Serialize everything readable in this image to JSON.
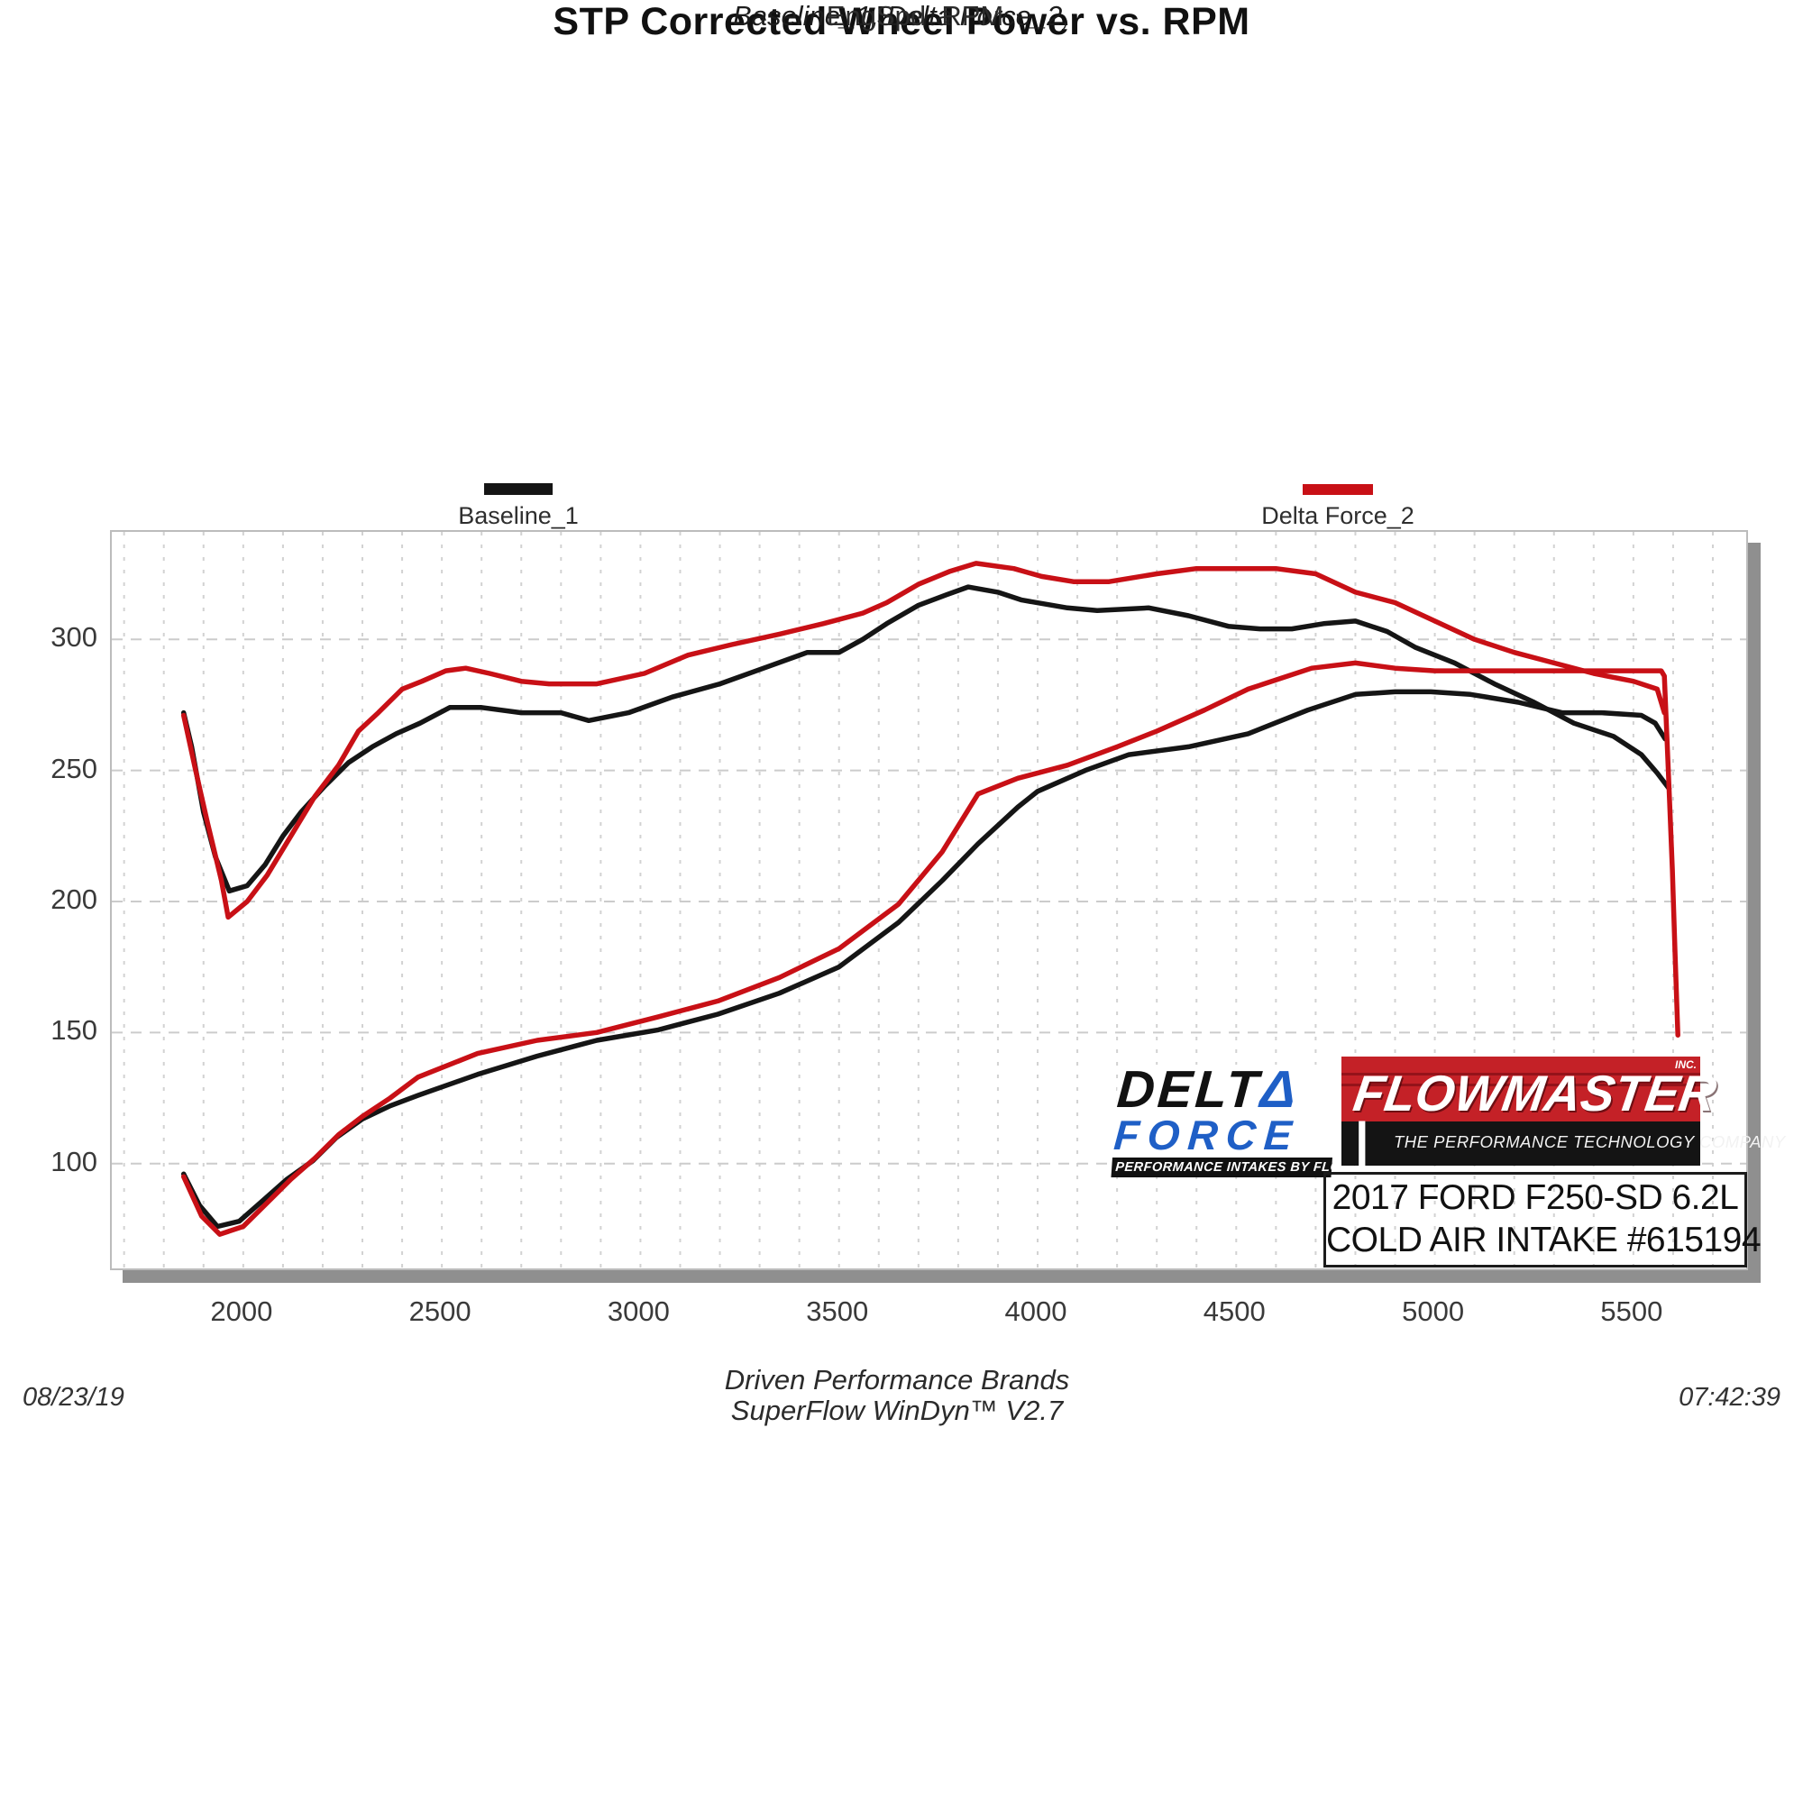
{
  "header": {
    "title": "STP Corrected Wheel Power vs. RPM",
    "subtitle": "Baseline_1, Delta Force_2,"
  },
  "footer": {
    "xlabel": "EngSpd  RPM",
    "brand_line": "Driven Performance Brands",
    "software_line": "SuperFlow WinDyn™ V2.7",
    "date": "08/23/19",
    "time": "07:42:39"
  },
  "logos": {
    "delta_force": {
      "word1": "DELT",
      "word1_accent": "Δ",
      "word2": "FORCE",
      "tagline": "PERFORMANCE INTAKES BY FLOWMASTER",
      "blue": "#1f5fc6"
    },
    "flowmaster": {
      "name": "FLOWMASTER",
      "suffix": "INC.",
      "tagline": "THE PERFORMANCE TECHNOLOGY COMPANY",
      "red": "#c42127"
    },
    "vehicle": {
      "line1": "2017 FORD F250-SD 6.2L",
      "line2": "COLD AIR INTAKE #615194"
    }
  },
  "chart_data": {
    "type": "line",
    "title": "STP Corrected Wheel Power vs. RPM",
    "subtitle": "Baseline_1, Delta Force_2,",
    "xlabel": "EngSpd RPM",
    "ylabel": "",
    "x_range": [
      1669,
      5784
    ],
    "y_range": [
      60,
      341
    ],
    "x_ticks": [
      2000,
      2500,
      3000,
      3500,
      4000,
      4500,
      5000,
      5500
    ],
    "y_ticks": [
      100,
      150,
      200,
      250,
      300
    ],
    "x_minor_grid_step": 100,
    "y_grid_step": 50,
    "grid": "dashed",
    "legend_position": "top",
    "legend": [
      {
        "label": "Baseline_1",
        "color": "#151515"
      },
      {
        "label": "Delta Force_2",
        "color": "#c81016"
      }
    ],
    "series": [
      {
        "name": "Baseline_1",
        "curve": "torque",
        "color": "#151515",
        "points": [
          [
            1850,
            272
          ],
          [
            1870,
            259
          ],
          [
            1900,
            234
          ],
          [
            1930,
            217
          ],
          [
            1965,
            204
          ],
          [
            2010,
            206
          ],
          [
            2055,
            214
          ],
          [
            2100,
            225
          ],
          [
            2145,
            234
          ],
          [
            2205,
            244
          ],
          [
            2265,
            253
          ],
          [
            2325,
            259
          ],
          [
            2385,
            264
          ],
          [
            2445,
            268
          ],
          [
            2520,
            274
          ],
          [
            2600,
            274
          ],
          [
            2700,
            272
          ],
          [
            2800,
            272
          ],
          [
            2870,
            269
          ],
          [
            2970,
            272
          ],
          [
            3080,
            278
          ],
          [
            3200,
            283
          ],
          [
            3310,
            289
          ],
          [
            3420,
            295
          ],
          [
            3500,
            295
          ],
          [
            3560,
            300
          ],
          [
            3620,
            306
          ],
          [
            3700,
            313
          ],
          [
            3770,
            317
          ],
          [
            3825,
            320
          ],
          [
            3900,
            318
          ],
          [
            3960,
            315
          ],
          [
            4075,
            312
          ],
          [
            4150,
            311
          ],
          [
            4280,
            312
          ],
          [
            4380,
            309
          ],
          [
            4480,
            305
          ],
          [
            4560,
            304
          ],
          [
            4640,
            304
          ],
          [
            4720,
            306
          ],
          [
            4800,
            307
          ],
          [
            4880,
            303
          ],
          [
            4950,
            297
          ],
          [
            5050,
            291
          ],
          [
            5150,
            283
          ],
          [
            5250,
            276
          ],
          [
            5350,
            268
          ],
          [
            5450,
            263
          ],
          [
            5520,
            256
          ],
          [
            5560,
            249
          ],
          [
            5590,
            243
          ]
        ]
      },
      {
        "name": "Delta Force_2",
        "curve": "torque",
        "color": "#c81016",
        "points": [
          [
            1850,
            271
          ],
          [
            1880,
            250
          ],
          [
            1910,
            230
          ],
          [
            1945,
            208
          ],
          [
            1962,
            194
          ],
          [
            2010,
            200
          ],
          [
            2060,
            210
          ],
          [
            2120,
            225
          ],
          [
            2180,
            240
          ],
          [
            2240,
            252
          ],
          [
            2290,
            265
          ],
          [
            2340,
            272
          ],
          [
            2400,
            281
          ],
          [
            2450,
            284
          ],
          [
            2510,
            288
          ],
          [
            2560,
            289
          ],
          [
            2620,
            287
          ],
          [
            2700,
            284
          ],
          [
            2770,
            283
          ],
          [
            2890,
            283
          ],
          [
            3010,
            287
          ],
          [
            3120,
            294
          ],
          [
            3230,
            298
          ],
          [
            3350,
            302
          ],
          [
            3460,
            306
          ],
          [
            3560,
            310
          ],
          [
            3620,
            314
          ],
          [
            3700,
            321
          ],
          [
            3780,
            326
          ],
          [
            3845,
            329
          ],
          [
            3940,
            327
          ],
          [
            4010,
            324
          ],
          [
            4090,
            322
          ],
          [
            4180,
            322
          ],
          [
            4300,
            325
          ],
          [
            4400,
            327
          ],
          [
            4500,
            327
          ],
          [
            4600,
            327
          ],
          [
            4700,
            325
          ],
          [
            4800,
            318
          ],
          [
            4900,
            314
          ],
          [
            5000,
            307
          ],
          [
            5100,
            300
          ],
          [
            5200,
            295
          ],
          [
            5300,
            291
          ],
          [
            5400,
            287
          ],
          [
            5500,
            284
          ],
          [
            5560,
            281
          ],
          [
            5578,
            272
          ]
        ]
      },
      {
        "name": "Baseline_1",
        "curve": "power",
        "color": "#151515",
        "points": [
          [
            1850,
            96
          ],
          [
            1890,
            84
          ],
          [
            1935,
            76
          ],
          [
            1990,
            78
          ],
          [
            2050,
            86
          ],
          [
            2110,
            94
          ],
          [
            2175,
            101
          ],
          [
            2235,
            110
          ],
          [
            2300,
            117
          ],
          [
            2370,
            122
          ],
          [
            2440,
            126
          ],
          [
            2590,
            134
          ],
          [
            2740,
            141
          ],
          [
            2890,
            147
          ],
          [
            3045,
            151
          ],
          [
            3195,
            157
          ],
          [
            3350,
            165
          ],
          [
            3500,
            175
          ],
          [
            3650,
            192
          ],
          [
            3760,
            208
          ],
          [
            3850,
            222
          ],
          [
            3950,
            236
          ],
          [
            4000,
            242
          ],
          [
            4120,
            250
          ],
          [
            4230,
            256
          ],
          [
            4380,
            259
          ],
          [
            4530,
            264
          ],
          [
            4680,
            273
          ],
          [
            4800,
            279
          ],
          [
            4900,
            280
          ],
          [
            4990,
            280
          ],
          [
            5090,
            279
          ],
          [
            5210,
            276
          ],
          [
            5320,
            272
          ],
          [
            5420,
            272
          ],
          [
            5520,
            271
          ],
          [
            5555,
            268
          ],
          [
            5580,
            262
          ]
        ]
      },
      {
        "name": "Delta Force_2",
        "curve": "power",
        "color": "#c81016",
        "points": [
          [
            1850,
            95
          ],
          [
            1895,
            80
          ],
          [
            1941,
            73
          ],
          [
            2000,
            76
          ],
          [
            2060,
            85
          ],
          [
            2120,
            94
          ],
          [
            2180,
            102
          ],
          [
            2240,
            111
          ],
          [
            2300,
            118
          ],
          [
            2370,
            125
          ],
          [
            2440,
            133
          ],
          [
            2590,
            142
          ],
          [
            2740,
            147
          ],
          [
            2890,
            150
          ],
          [
            3045,
            156
          ],
          [
            3195,
            162
          ],
          [
            3350,
            171
          ],
          [
            3500,
            182
          ],
          [
            3650,
            199
          ],
          [
            3760,
            219
          ],
          [
            3850,
            241
          ],
          [
            3950,
            247
          ],
          [
            4075,
            252
          ],
          [
            4200,
            259
          ],
          [
            4300,
            265
          ],
          [
            4420,
            273
          ],
          [
            4530,
            281
          ],
          [
            4610,
            285
          ],
          [
            4690,
            289
          ],
          [
            4800,
            291
          ],
          [
            4900,
            289
          ],
          [
            5000,
            288
          ],
          [
            5150,
            288
          ],
          [
            5300,
            288
          ],
          [
            5450,
            288
          ],
          [
            5570,
            288
          ],
          [
            5578,
            286
          ],
          [
            5588,
            250
          ],
          [
            5598,
            212
          ],
          [
            5605,
            180
          ],
          [
            5612,
            149
          ]
        ]
      }
    ]
  }
}
